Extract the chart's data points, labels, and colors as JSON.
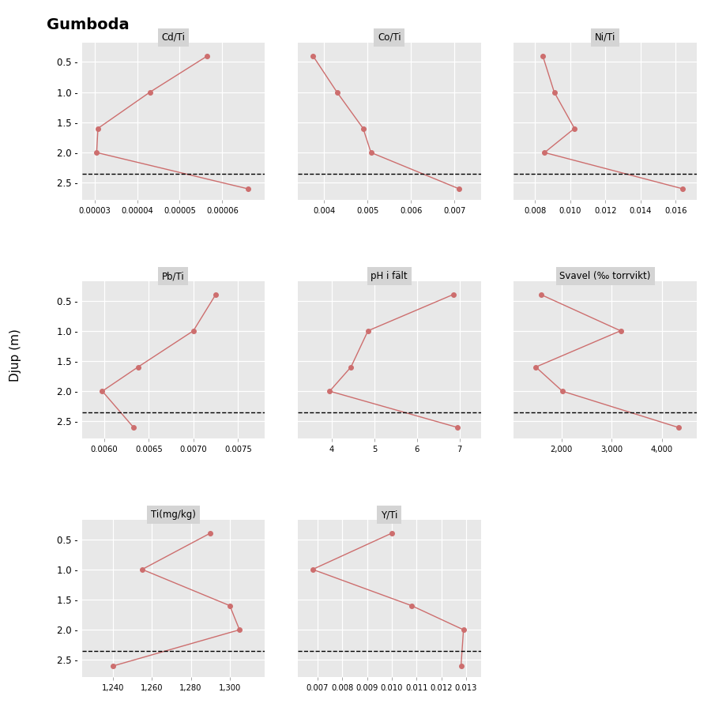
{
  "title": "Gumboda",
  "ylabel": "Djup (m)",
  "bg_color": "#e8e8e8",
  "line_color": "#cd6e6e",
  "dashed_line_depth": 2.35,
  "depths": [
    0.4,
    1.0,
    1.6,
    2.0,
    2.6
  ],
  "ylim_top": 0.18,
  "ylim_bottom": 2.78,
  "yticks": [
    0.5,
    1.0,
    1.5,
    2.0,
    2.5
  ],
  "panels": [
    {
      "title": "Cd/Ti",
      "row": 0,
      "col": 0,
      "x": [
        5.65e-05,
        4.3e-05,
        3.08e-05,
        3.05e-05,
        6.6e-05
      ],
      "xlim": [
        2.7e-05,
        7e-05
      ],
      "xticks": [
        3e-05,
        4e-05,
        5e-05,
        6e-05
      ],
      "xticklabels": [
        "0.00003",
        "0.00004",
        "0.00005",
        "0.00006"
      ]
    },
    {
      "title": "Co/Ti",
      "row": 0,
      "col": 1,
      "x": [
        0.00375,
        0.0043,
        0.0049,
        0.00508,
        0.0071
      ],
      "xlim": [
        0.0034,
        0.0076
      ],
      "xticks": [
        0.004,
        0.005,
        0.006,
        0.007
      ],
      "xticklabels": [
        "0.004",
        "0.005",
        "0.006",
        "0.007"
      ]
    },
    {
      "title": "Ni/Ti",
      "row": 0,
      "col": 2,
      "x": [
        0.00845,
        0.0091,
        0.01025,
        0.00855,
        0.0164
      ],
      "xlim": [
        0.0068,
        0.0172
      ],
      "xticks": [
        0.008,
        0.01,
        0.012,
        0.014,
        0.016
      ],
      "xticklabels": [
        "0.008",
        "0.010",
        "0.012",
        "0.014",
        "0.016"
      ]
    },
    {
      "title": "Pb/Ti",
      "row": 1,
      "col": 0,
      "x": [
        0.00725,
        0.007,
        0.00638,
        0.00598,
        0.00633
      ],
      "xlim": [
        0.00575,
        0.0078
      ],
      "xticks": [
        0.006,
        0.0065,
        0.007,
        0.0075
      ],
      "xticklabels": [
        "0.0060",
        "0.0065",
        "0.0070",
        "0.0075"
      ]
    },
    {
      "title": "pH i fält",
      "row": 1,
      "col": 1,
      "x": [
        6.85,
        4.85,
        4.45,
        3.95,
        6.95
      ],
      "xlim": [
        3.2,
        7.5
      ],
      "xticks": [
        4,
        5,
        6,
        7
      ],
      "xticklabels": [
        "4",
        "5",
        "6",
        "7"
      ]
    },
    {
      "title": "Svavel (‰ torrvikt)",
      "row": 1,
      "col": 2,
      "x": [
        1590,
        3180,
        1490,
        2020,
        4330
      ],
      "xlim": [
        1050,
        4700
      ],
      "xticks": [
        2000,
        3000,
        4000
      ],
      "xticklabels": [
        "2,000",
        "3,000",
        "4,000"
      ]
    },
    {
      "title": "Ti(mg/kg)",
      "row": 2,
      "col": 0,
      "x": [
        1290,
        1255,
        1300,
        1305,
        1240
      ],
      "xlim": [
        1224,
        1318
      ],
      "xticks": [
        1240,
        1260,
        1280,
        1300
      ],
      "xticklabels": [
        "1,240",
        "1,260",
        "1,280",
        "1,300"
      ]
    },
    {
      "title": "Y/Ti",
      "row": 2,
      "col": 1,
      "x": [
        0.01,
        0.0068,
        0.0108,
        0.0129,
        0.0128
      ],
      "xlim": [
        0.0062,
        0.0136
      ],
      "xticks": [
        0.007,
        0.008,
        0.009,
        0.01,
        0.011,
        0.012,
        0.013
      ],
      "xticklabels": [
        "0.007",
        "0.008",
        "0.009",
        "0.010",
        "0.011",
        "0.012",
        "0.013"
      ]
    }
  ]
}
